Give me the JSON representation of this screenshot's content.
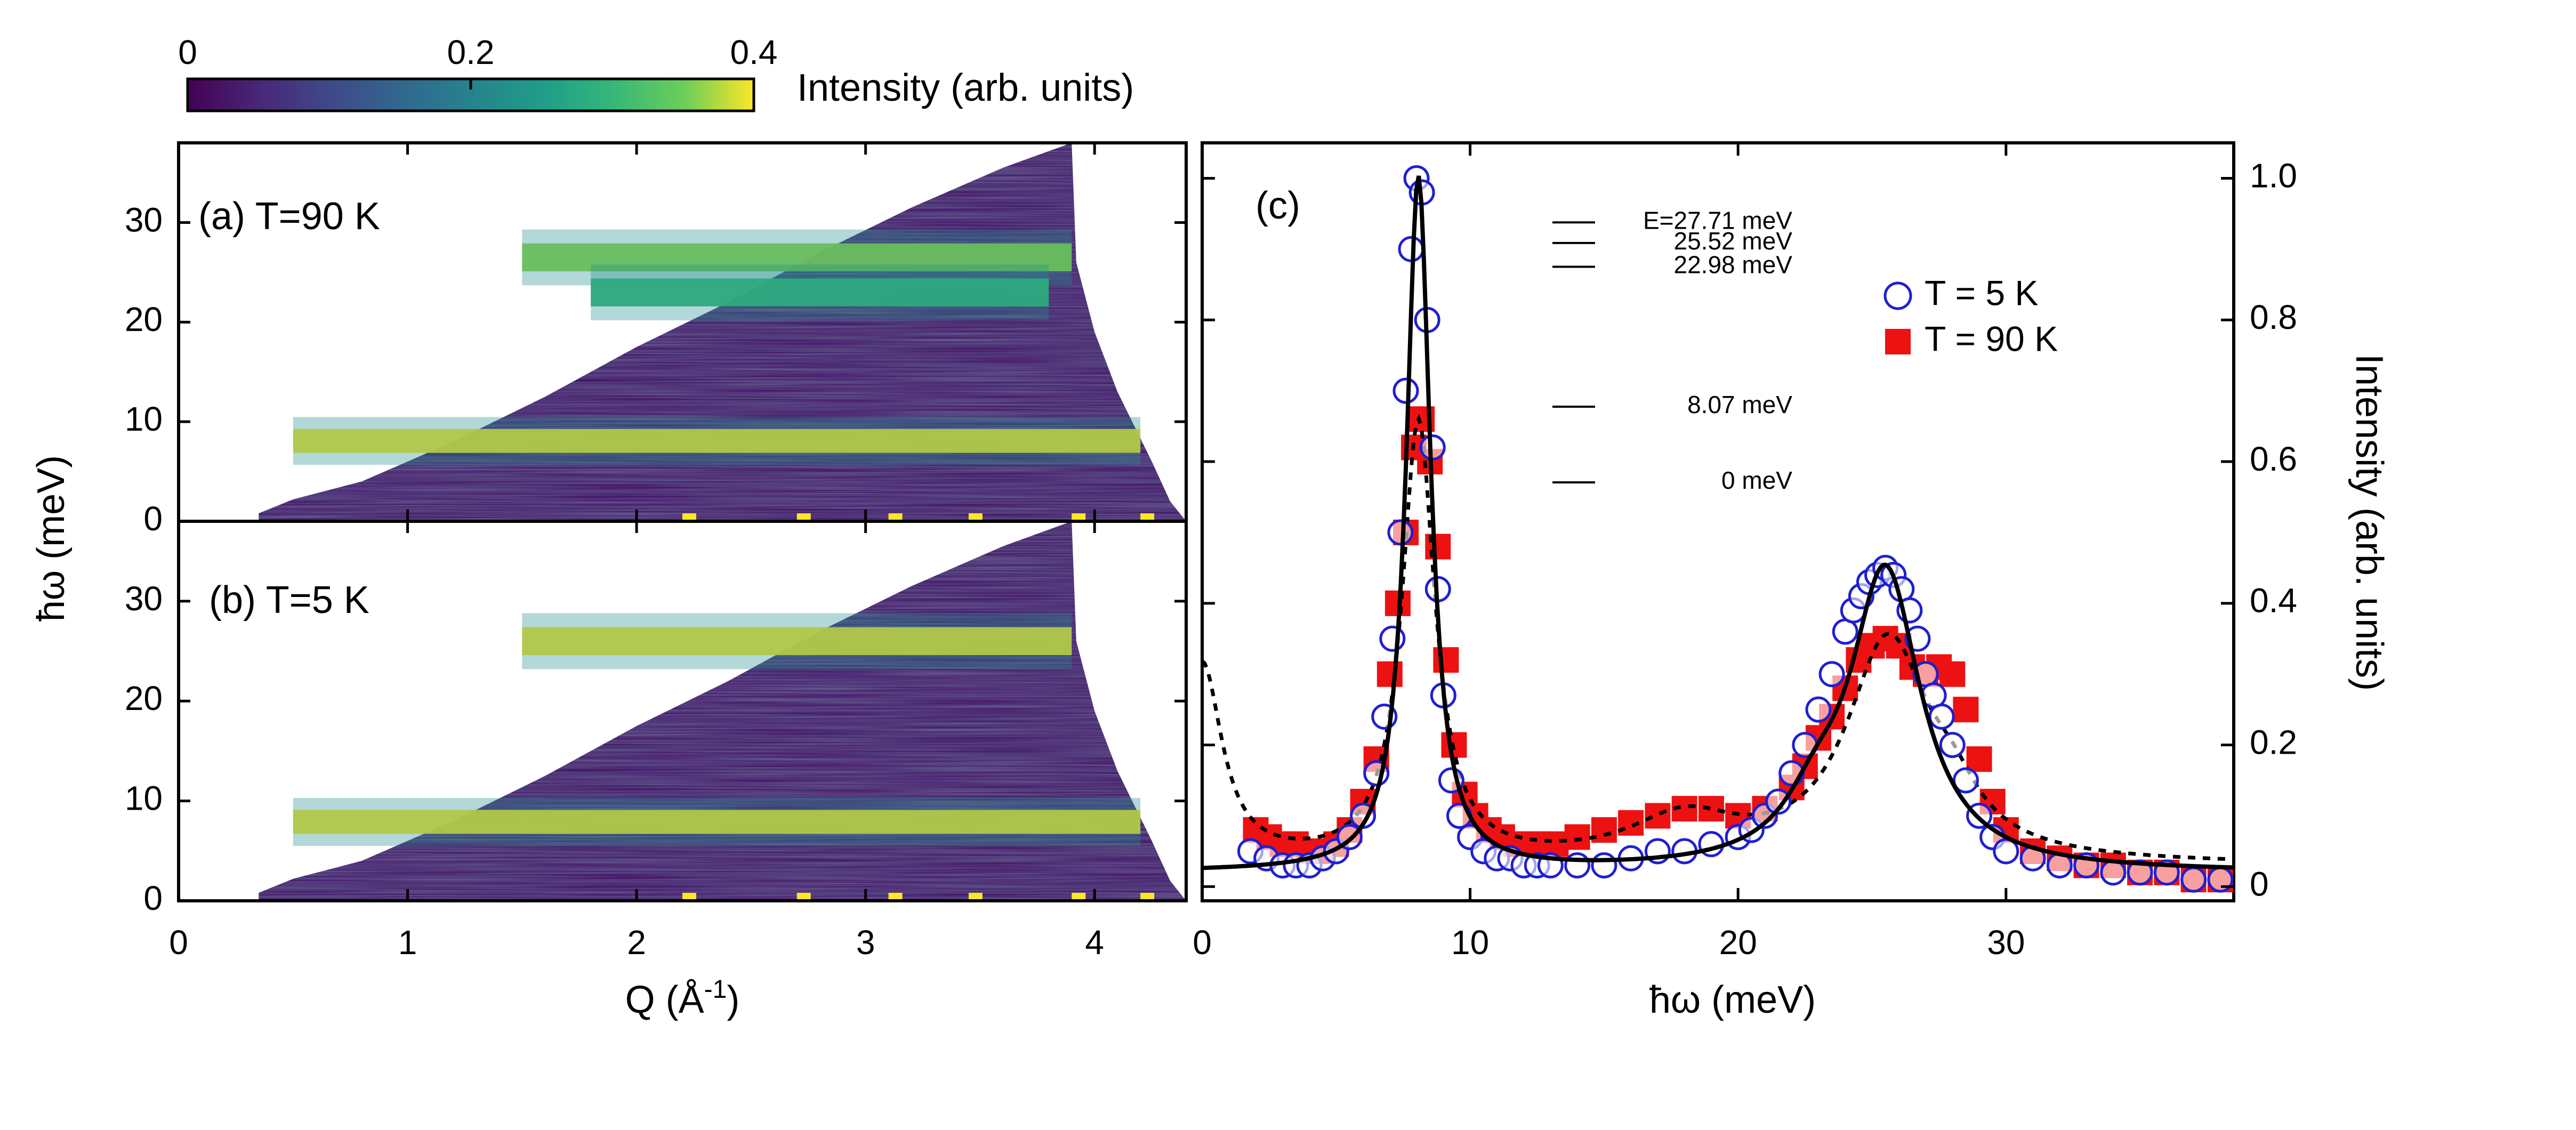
{
  "colorbar": {
    "ticks": [
      "0",
      "0.2",
      "0.4"
    ],
    "label": "Intensity (arb. units)",
    "range": [
      0,
      0.4
    ],
    "colors": [
      "#440154",
      "#3b528b",
      "#21908d",
      "#5dc963",
      "#fde725"
    ]
  },
  "colors": {
    "t5_marker": "#1f1fd1",
    "t90_marker": "#ee1111",
    "fit_line": "#000000",
    "highlight": "#fde725",
    "background": "#440154"
  },
  "chart_data": [
    {
      "type": "heatmap",
      "panel_label": "(a) T=90 K",
      "xlabel": "Q (Å⁻¹)",
      "ylabel": "ħω (meV)",
      "xlim": [
        0,
        4.4
      ],
      "ylim": [
        0,
        38
      ],
      "xticks": [
        "0",
        "1",
        "2",
        "3",
        "4"
      ],
      "yticks": [
        "0",
        "10",
        "20",
        "30"
      ],
      "bands": [
        {
          "energy": 8.07,
          "q_range": [
            0.5,
            4.2
          ],
          "intensity": 0.4
        },
        {
          "energy": 26.5,
          "q_range": [
            1.5,
            3.9
          ],
          "intensity": 0.3
        },
        {
          "energy": 22.98,
          "q_range": [
            1.8,
            3.8
          ],
          "intensity": 0.15
        }
      ]
    },
    {
      "type": "heatmap",
      "panel_label": "(b) T=5 K",
      "xlabel": "Q (Å⁻¹)",
      "ylabel": "ħω (meV)",
      "xlim": [
        0,
        4.4
      ],
      "ylim": [
        0,
        38
      ],
      "xticks": [
        "0",
        "1",
        "2",
        "3",
        "4"
      ],
      "yticks": [
        "0",
        "10",
        "20",
        "30"
      ],
      "bands": [
        {
          "energy": 7.9,
          "q_range": [
            0.5,
            4.2
          ],
          "intensity": 0.45
        },
        {
          "energy": 26.0,
          "q_range": [
            1.5,
            3.9
          ],
          "intensity": 0.45
        }
      ]
    },
    {
      "type": "scatter",
      "panel_label": "(c)",
      "xlabel": "ħω (meV)",
      "ylabel": "Intensity (arb. units)",
      "xlim": [
        0,
        38.5
      ],
      "ylim": [
        -0.02,
        1.05
      ],
      "xticks": [
        "0",
        "10",
        "20",
        "30"
      ],
      "yticks": [
        "0",
        "0.2",
        "0.4",
        "0.6",
        "0.8",
        "1.0"
      ],
      "levels": [
        {
          "label": "E=27.71 meV",
          "energy": 27.71
        },
        {
          "label": "25.52 meV",
          "energy": 25.52
        },
        {
          "label": "22.98 meV",
          "energy": 22.98
        },
        {
          "label": "8.07 meV",
          "energy": 8.07
        },
        {
          "label": "0 meV",
          "energy": 0
        }
      ],
      "legend": [
        "T = 5 K",
        "T = 90 K"
      ],
      "series": [
        {
          "name": "T = 5 K",
          "marker": "open-circle",
          "x": [
            1.8,
            2.4,
            3.0,
            3.5,
            4.0,
            4.5,
            5.0,
            5.5,
            6.0,
            6.5,
            6.8,
            7.1,
            7.4,
            7.6,
            7.8,
            8.0,
            8.2,
            8.4,
            8.6,
            8.8,
            9.0,
            9.3,
            9.6,
            10.0,
            10.5,
            11.0,
            11.5,
            12.0,
            12.5,
            13.0,
            14.0,
            15.0,
            16.0,
            17.0,
            18.0,
            19.0,
            20.0,
            20.5,
            21.0,
            21.5,
            22.0,
            22.5,
            23.0,
            23.5,
            24.0,
            24.3,
            24.6,
            24.9,
            25.2,
            25.5,
            25.8,
            26.1,
            26.4,
            26.7,
            27.0,
            27.3,
            27.6,
            28.0,
            28.5,
            29.0,
            29.5,
            30.0,
            31.0,
            32.0,
            33.0,
            34.0,
            35.0,
            36.0,
            37.0,
            38.0
          ],
          "y": [
            0.05,
            0.04,
            0.03,
            0.03,
            0.03,
            0.04,
            0.05,
            0.07,
            0.1,
            0.16,
            0.24,
            0.35,
            0.5,
            0.7,
            0.9,
            1.0,
            0.98,
            0.8,
            0.62,
            0.42,
            0.27,
            0.15,
            0.1,
            0.07,
            0.05,
            0.04,
            0.04,
            0.03,
            0.03,
            0.03,
            0.03,
            0.03,
            0.04,
            0.05,
            0.05,
            0.06,
            0.07,
            0.08,
            0.1,
            0.12,
            0.16,
            0.2,
            0.25,
            0.3,
            0.36,
            0.39,
            0.41,
            0.43,
            0.44,
            0.45,
            0.44,
            0.42,
            0.39,
            0.35,
            0.3,
            0.27,
            0.24,
            0.2,
            0.15,
            0.1,
            0.07,
            0.05,
            0.04,
            0.03,
            0.03,
            0.02,
            0.02,
            0.02,
            0.01,
            0.01
          ]
        },
        {
          "name": "T = 90 K",
          "marker": "filled-square",
          "x": [
            2.0,
            2.5,
            3.0,
            3.5,
            4.0,
            4.5,
            5.0,
            5.5,
            6.0,
            6.5,
            7.0,
            7.3,
            7.6,
            7.9,
            8.2,
            8.5,
            8.8,
            9.1,
            9.4,
            9.8,
            10.2,
            10.7,
            11.2,
            11.7,
            12.2,
            12.7,
            13.2,
            14.0,
            15.0,
            16.0,
            17.0,
            18.0,
            19.0,
            20.0,
            21.0,
            22.0,
            22.5,
            23.0,
            23.5,
            24.0,
            24.5,
            25.0,
            25.5,
            26.0,
            26.5,
            27.0,
            27.5,
            28.0,
            28.5,
            29.0,
            29.5,
            30.0,
            31.0,
            32.0,
            33.0,
            34.0,
            35.0,
            36.0,
            37.0,
            38.0
          ],
          "y": [
            0.08,
            0.07,
            0.06,
            0.06,
            0.05,
            0.05,
            0.06,
            0.08,
            0.12,
            0.18,
            0.3,
            0.4,
            0.5,
            0.62,
            0.66,
            0.6,
            0.48,
            0.32,
            0.2,
            0.13,
            0.1,
            0.08,
            0.07,
            0.06,
            0.06,
            0.06,
            0.06,
            0.07,
            0.08,
            0.09,
            0.1,
            0.11,
            0.11,
            0.1,
            0.11,
            0.14,
            0.17,
            0.21,
            0.24,
            0.28,
            0.32,
            0.34,
            0.35,
            0.34,
            0.31,
            0.3,
            0.31,
            0.3,
            0.25,
            0.18,
            0.12,
            0.08,
            0.05,
            0.04,
            0.03,
            0.03,
            0.02,
            0.02,
            0.01,
            0.01
          ]
        }
      ]
    }
  ]
}
